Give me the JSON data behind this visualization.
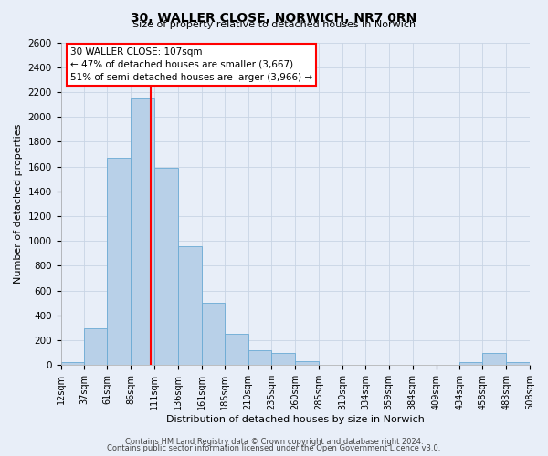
{
  "title": "30, WALLER CLOSE, NORWICH, NR7 0RN",
  "subtitle": "Size of property relative to detached houses in Norwich",
  "xlabel": "Distribution of detached houses by size in Norwich",
  "ylabel": "Number of detached properties",
  "bar_color": "#b8d0e8",
  "bar_edge_color": "#6aaad4",
  "background_color": "#e8eef8",
  "grid_color": "#c8d4e4",
  "vline_x": 107,
  "vline_color": "red",
  "annotation_text": "30 WALLER CLOSE: 107sqm\n← 47% of detached houses are smaller (3,667)\n51% of semi-detached houses are larger (3,966) →",
  "annotation_box_color": "white",
  "annotation_box_edge_color": "red",
  "bin_edges": [
    12,
    37,
    61,
    86,
    111,
    136,
    161,
    185,
    210,
    235,
    260,
    285,
    310,
    334,
    359,
    384,
    409,
    434,
    458,
    483,
    508
  ],
  "bar_heights": [
    25,
    300,
    1670,
    2150,
    1590,
    960,
    500,
    250,
    120,
    95,
    30,
    0,
    0,
    0,
    0,
    0,
    0,
    25,
    100,
    25
  ],
  "tick_labels": [
    "12sqm",
    "37sqm",
    "61sqm",
    "86sqm",
    "111sqm",
    "136sqm",
    "161sqm",
    "185sqm",
    "210sqm",
    "235sqm",
    "260sqm",
    "285sqm",
    "310sqm",
    "334sqm",
    "359sqm",
    "384sqm",
    "409sqm",
    "434sqm",
    "458sqm",
    "483sqm",
    "508sqm"
  ],
  "ylim": [
    0,
    2600
  ],
  "yticks": [
    0,
    200,
    400,
    600,
    800,
    1000,
    1200,
    1400,
    1600,
    1800,
    2000,
    2200,
    2400,
    2600
  ],
  "footer_line1": "Contains HM Land Registry data © Crown copyright and database right 2024.",
  "footer_line2": "Contains public sector information licensed under the Open Government Licence v3.0.",
  "title_fontsize": 10,
  "subtitle_fontsize": 8,
  "ylabel_fontsize": 8,
  "xlabel_fontsize": 8,
  "tick_fontsize": 7,
  "annotation_fontsize": 7.5,
  "footer_fontsize": 6
}
